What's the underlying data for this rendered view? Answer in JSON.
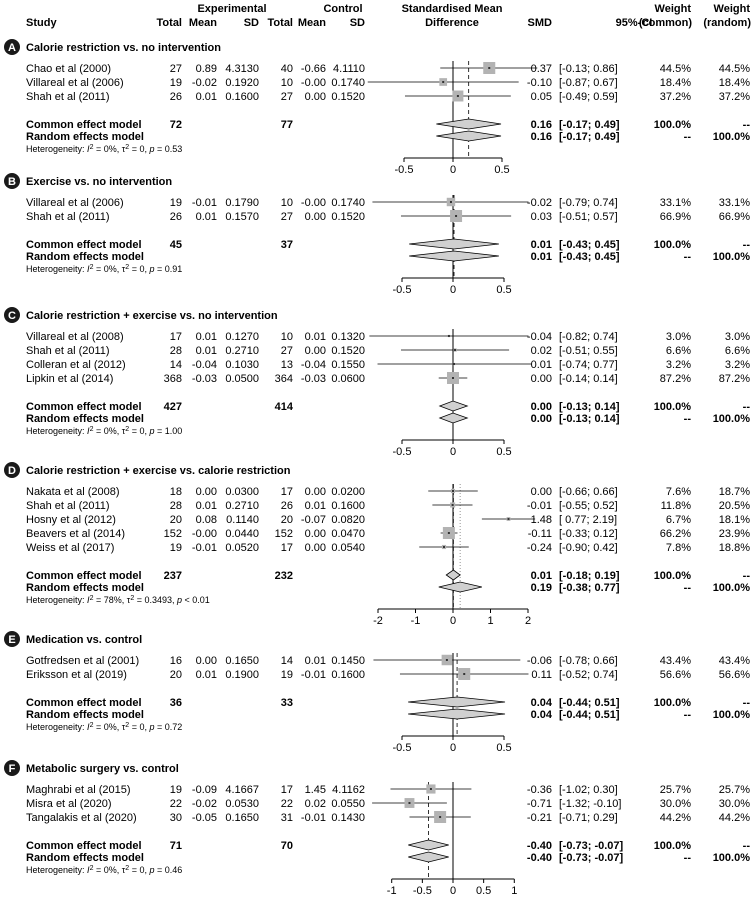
{
  "header": {
    "study": "Study",
    "experimental": "Experimental",
    "control": "Control",
    "total": "Total",
    "mean": "Mean",
    "sd": "SD",
    "smd_title_1": "Standardised Mean",
    "smd_title_2": "Difference",
    "smd": "SMD",
    "ci": "95%-CI",
    "weight": "Weight",
    "common": "(common)",
    "random": "(random)"
  },
  "colors": {
    "box": "#b3b3b3",
    "diamond": "#d0d0d0",
    "line": "#000000"
  },
  "chart_data": [
    {
      "type": "forest",
      "panel": "A",
      "title": "Calorie restriction vs. no intervention",
      "studies": [
        {
          "study": "Chao et al (2000)",
          "e_total": "27",
          "e_mean": "0.89",
          "e_sd": "4.3130",
          "c_total": "40",
          "c_mean": "-0.66",
          "c_sd": "4.1110",
          "smd": 0.37,
          "lo": -0.13,
          "hi": 0.86,
          "smd_text": "0.37",
          "ci_text": "[-0.13; 0.86]",
          "w_common": "44.5%",
          "w_random": "44.5%"
        },
        {
          "study": "Villareal et al (2006)",
          "e_total": "19",
          "e_mean": "-0.02",
          "e_sd": "0.1920",
          "c_total": "10",
          "c_mean": "-0.00",
          "c_sd": "0.1740",
          "smd": -0.1,
          "lo": -0.87,
          "hi": 0.67,
          "smd_text": "-0.10",
          "ci_text": "[-0.87; 0.67]",
          "w_common": "18.4%",
          "w_random": "18.4%"
        },
        {
          "study": "Shah et al (2011)",
          "e_total": "26",
          "e_mean": "0.01",
          "e_sd": "0.1600",
          "c_total": "27",
          "c_mean": "0.00",
          "c_sd": "0.1520",
          "smd": 0.05,
          "lo": -0.49,
          "hi": 0.59,
          "smd_text": "0.05",
          "ci_text": "[-0.49; 0.59]",
          "w_common": "37.2%",
          "w_random": "37.2%"
        }
      ],
      "common": {
        "label": "Common effect model",
        "e_total": "72",
        "c_total": "77",
        "est": 0.16,
        "lo": -0.17,
        "hi": 0.49,
        "smd_text": "0.16",
        "ci_text": "[-0.17; 0.49]",
        "w_common": "100.0%",
        "w_random": "--"
      },
      "random": {
        "label": "Random effects model",
        "est": 0.16,
        "lo": -0.17,
        "hi": 0.49,
        "smd_text": "0.16",
        "ci_text": "[-0.17; 0.49]",
        "w_common": "--",
        "w_random": "100.0%"
      },
      "heterogeneity": {
        "prefix": "Heterogeneity: ",
        "i2": "I",
        "i2_sup": "2",
        "i2_val": " = 0%, ",
        "tau": "τ",
        "tau_sup": "2",
        "tau_val": " = 0, ",
        "p": "p",
        "p_val": " = 0.53"
      },
      "axis": {
        "min": -0.5,
        "max": 0.5,
        "ticks": [
          {
            "v": -0.5,
            "label": "-0.5"
          },
          {
            "v": 0,
            "label": "0"
          },
          {
            "v": 0.5,
            "label": "0.5"
          }
        ]
      }
    },
    {
      "type": "forest",
      "panel": "B",
      "title": "Exercise vs. no intervention",
      "studies": [
        {
          "study": "Villareal et al (2006)",
          "e_total": "19",
          "e_mean": "-0.01",
          "e_sd": "0.1790",
          "c_total": "10",
          "c_mean": "-0.00",
          "c_sd": "0.1740",
          "smd": -0.02,
          "lo": -0.79,
          "hi": 0.74,
          "smd_text": "-0.02",
          "ci_text": "[-0.79; 0.74]",
          "w_common": "33.1%",
          "w_random": "33.1%"
        },
        {
          "study": "Shah et al (2011)",
          "e_total": "26",
          "e_mean": "0.01",
          "e_sd": "0.1570",
          "c_total": "27",
          "c_mean": "0.00",
          "c_sd": "0.1520",
          "smd": 0.03,
          "lo": -0.51,
          "hi": 0.57,
          "smd_text": "0.03",
          "ci_text": "[-0.51; 0.57]",
          "w_common": "66.9%",
          "w_random": "66.9%"
        }
      ],
      "common": {
        "label": "Common effect model",
        "e_total": "45",
        "c_total": "37",
        "est": 0.01,
        "lo": -0.43,
        "hi": 0.45,
        "smd_text": "0.01",
        "ci_text": "[-0.43; 0.45]",
        "w_common": "100.0%",
        "w_random": "--"
      },
      "random": {
        "label": "Random effects model",
        "est": 0.01,
        "lo": -0.43,
        "hi": 0.45,
        "smd_text": "0.01",
        "ci_text": "[-0.43; 0.45]",
        "w_common": "--",
        "w_random": "100.0%"
      },
      "heterogeneity": {
        "prefix": "Heterogeneity: ",
        "i2": "I",
        "i2_sup": "2",
        "i2_val": " = 0%, ",
        "tau": "τ",
        "tau_sup": "2",
        "tau_val": " = 0, ",
        "p": "p",
        "p_val": " = 0.91"
      },
      "axis": {
        "min": -0.5,
        "max": 0.5,
        "ticks": [
          {
            "v": -0.5,
            "label": "-0.5"
          },
          {
            "v": 0,
            "label": "0"
          },
          {
            "v": 0.5,
            "label": "0.5"
          }
        ]
      }
    },
    {
      "type": "forest",
      "panel": "C",
      "title": "Calorie restriction + exercise vs. no intervention",
      "studies": [
        {
          "study": "Villareal et al (2008)",
          "e_total": "17",
          "e_mean": "0.01",
          "e_sd": "0.1270",
          "c_total": "10",
          "c_mean": "0.01",
          "c_sd": "0.1320",
          "smd": -0.04,
          "lo": -0.82,
          "hi": 0.74,
          "smd_text": "-0.04",
          "ci_text": "[-0.82; 0.74]",
          "w_common": "3.0%",
          "w_random": "3.0%"
        },
        {
          "study": "Shah et al (2011)",
          "e_total": "28",
          "e_mean": "0.01",
          "e_sd": "0.2710",
          "c_total": "27",
          "c_mean": "0.00",
          "c_sd": "0.1520",
          "smd": 0.02,
          "lo": -0.51,
          "hi": 0.55,
          "smd_text": "0.02",
          "ci_text": "[-0.51; 0.55]",
          "w_common": "6.6%",
          "w_random": "6.6%"
        },
        {
          "study": "Colleran et al (2012)",
          "e_total": "14",
          "e_mean": "-0.04",
          "e_sd": "0.1030",
          "c_total": "13",
          "c_mean": "-0.04",
          "c_sd": "0.1550",
          "smd": 0.01,
          "lo": -0.74,
          "hi": 0.77,
          "smd_text": "0.01",
          "ci_text": "[-0.74; 0.77]",
          "w_common": "3.2%",
          "w_random": "3.2%"
        },
        {
          "study": "Lipkin et al (2014)",
          "e_total": "368",
          "e_mean": "-0.03",
          "e_sd": "0.0500",
          "c_total": "364",
          "c_mean": "-0.03",
          "c_sd": "0.0600",
          "smd": 0.0,
          "lo": -0.14,
          "hi": 0.14,
          "smd_text": "0.00",
          "ci_text": "[-0.14; 0.14]",
          "w_common": "87.2%",
          "w_random": "87.2%"
        }
      ],
      "common": {
        "label": "Common effect model",
        "e_total": "427",
        "c_total": "414",
        "est": 0.0,
        "lo": -0.13,
        "hi": 0.14,
        "smd_text": "0.00",
        "ci_text": "[-0.13; 0.14]",
        "w_common": "100.0%",
        "w_random": "--"
      },
      "random": {
        "label": "Random effects model",
        "est": 0.0,
        "lo": -0.13,
        "hi": 0.14,
        "smd_text": "0.00",
        "ci_text": "[-0.13; 0.14]",
        "w_common": "--",
        "w_random": "100.0%"
      },
      "heterogeneity": {
        "prefix": "Heterogeneity: ",
        "i2": "I",
        "i2_sup": "2",
        "i2_val": " = 0%, ",
        "tau": "τ",
        "tau_sup": "2",
        "tau_val": " = 0, ",
        "p": "p",
        "p_val": " = 1.00"
      },
      "axis": {
        "min": -0.5,
        "max": 0.5,
        "ticks": [
          {
            "v": -0.5,
            "label": "-0.5"
          },
          {
            "v": 0,
            "label": "0"
          },
          {
            "v": 0.5,
            "label": "0.5"
          }
        ]
      }
    },
    {
      "type": "forest",
      "panel": "D",
      "title": "Calorie restriction + exercise vs. calorie restriction",
      "studies": [
        {
          "study": "Nakata et al (2008)",
          "e_total": "18",
          "e_mean": "0.00",
          "e_sd": "0.0300",
          "c_total": "17",
          "c_mean": "0.00",
          "c_sd": "0.0200",
          "smd": 0.0,
          "lo": -0.66,
          "hi": 0.66,
          "smd_text": "0.00",
          "ci_text": "[-0.66; 0.66]",
          "w_common": "7.6%",
          "w_random": "18.7%"
        },
        {
          "study": "Shah et al (2011)",
          "e_total": "28",
          "e_mean": "0.01",
          "e_sd": "0.2710",
          "c_total": "26",
          "c_mean": "0.01",
          "c_sd": "0.1600",
          "smd": -0.01,
          "lo": -0.55,
          "hi": 0.52,
          "smd_text": "-0.01",
          "ci_text": "[-0.55; 0.52]",
          "w_common": "11.8%",
          "w_random": "20.5%"
        },
        {
          "study": "Hosny et al (2012)",
          "e_total": "20",
          "e_mean": "0.08",
          "e_sd": "0.1140",
          "c_total": "20",
          "c_mean": "-0.07",
          "c_sd": "0.0820",
          "smd": 1.48,
          "lo": 0.77,
          "hi": 2.19,
          "smd_text": "1.48",
          "ci_text": "[ 0.77; 2.19]",
          "w_common": "6.7%",
          "w_random": "18.1%"
        },
        {
          "study": "Beavers et al (2014)",
          "e_total": "152",
          "e_mean": "-0.00",
          "e_sd": "0.0440",
          "c_total": "152",
          "c_mean": "0.00",
          "c_sd": "0.0470",
          "smd": -0.11,
          "lo": -0.33,
          "hi": 0.12,
          "smd_text": "-0.11",
          "ci_text": "[-0.33; 0.12]",
          "w_common": "66.2%",
          "w_random": "23.9%"
        },
        {
          "study": "Weiss et al (2017)",
          "e_total": "19",
          "e_mean": "-0.01",
          "e_sd": "0.0520",
          "c_total": "17",
          "c_mean": "0.00",
          "c_sd": "0.0540",
          "smd": -0.24,
          "lo": -0.9,
          "hi": 0.42,
          "smd_text": "-0.24",
          "ci_text": "[-0.90; 0.42]",
          "w_common": "7.8%",
          "w_random": "18.8%"
        }
      ],
      "common": {
        "label": "Common effect model",
        "e_total": "237",
        "c_total": "232",
        "est": 0.01,
        "lo": -0.18,
        "hi": 0.19,
        "smd_text": "0.01",
        "ci_text": "[-0.18; 0.19]",
        "w_common": "100.0%",
        "w_random": "--"
      },
      "random": {
        "label": "Random effects model",
        "est": 0.19,
        "lo": -0.38,
        "hi": 0.77,
        "smd_text": "0.19",
        "ci_text": "[-0.38; 0.77]",
        "w_common": "--",
        "w_random": "100.0%"
      },
      "heterogeneity": {
        "prefix": "Heterogeneity: ",
        "i2": "I",
        "i2_sup": "2",
        "i2_val": " = 78%, ",
        "tau": "τ",
        "tau_sup": "2",
        "tau_val": " = 0.3493, ",
        "p": "p",
        "p_val": " < 0.01"
      },
      "axis": {
        "min": -2,
        "max": 2,
        "ticks": [
          {
            "v": -2,
            "label": "-2"
          },
          {
            "v": -1,
            "label": "-1"
          },
          {
            "v": 0,
            "label": "0"
          },
          {
            "v": 1,
            "label": "1"
          },
          {
            "v": 2,
            "label": "2"
          }
        ]
      }
    },
    {
      "type": "forest",
      "panel": "E",
      "title": "Medication vs. control",
      "studies": [
        {
          "study": "Gotfredsen et al (2001)",
          "e_total": "16",
          "e_mean": "0.00",
          "e_sd": "0.1650",
          "c_total": "14",
          "c_mean": "0.01",
          "c_sd": "0.1450",
          "smd": -0.06,
          "lo": -0.78,
          "hi": 0.66,
          "smd_text": "-0.06",
          "ci_text": "[-0.78; 0.66]",
          "w_common": "43.4%",
          "w_random": "43.4%"
        },
        {
          "study": "Eriksson et al (2019)",
          "e_total": "20",
          "e_mean": "0.01",
          "e_sd": "0.1900",
          "c_total": "19",
          "c_mean": "-0.01",
          "c_sd": "0.1600",
          "smd": 0.11,
          "lo": -0.52,
          "hi": 0.74,
          "smd_text": "0.11",
          "ci_text": "[-0.52; 0.74]",
          "w_common": "56.6%",
          "w_random": "56.6%"
        }
      ],
      "common": {
        "label": "Common effect model",
        "e_total": "36",
        "c_total": "33",
        "est": 0.04,
        "lo": -0.44,
        "hi": 0.51,
        "smd_text": "0.04",
        "ci_text": "[-0.44; 0.51]",
        "w_common": "100.0%",
        "w_random": "--"
      },
      "random": {
        "label": "Random effects model",
        "est": 0.04,
        "lo": -0.44,
        "hi": 0.51,
        "smd_text": "0.04",
        "ci_text": "[-0.44; 0.51]",
        "w_common": "--",
        "w_random": "100.0%"
      },
      "heterogeneity": {
        "prefix": "Heterogeneity: ",
        "i2": "I",
        "i2_sup": "2",
        "i2_val": " = 0%, ",
        "tau": "τ",
        "tau_sup": "2",
        "tau_val": " = 0, ",
        "p": "p",
        "p_val": " = 0.72"
      },
      "axis": {
        "min": -0.5,
        "max": 0.5,
        "ticks": [
          {
            "v": -0.5,
            "label": "-0.5"
          },
          {
            "v": 0,
            "label": "0"
          },
          {
            "v": 0.5,
            "label": "0.5"
          }
        ]
      }
    },
    {
      "type": "forest",
      "panel": "F",
      "title": "Metabolic surgery vs. control",
      "studies": [
        {
          "study": "Maghrabi et al (2015)",
          "e_total": "19",
          "e_mean": "-0.09",
          "e_sd": "4.1667",
          "c_total": "17",
          "c_mean": "1.45",
          "c_sd": "4.1162",
          "smd": -0.36,
          "lo": -1.02,
          "hi": 0.3,
          "smd_text": "-0.36",
          "ci_text": "[-1.02; 0.30]",
          "w_common": "25.7%",
          "w_random": "25.7%"
        },
        {
          "study": "Misra et al (2020)",
          "e_total": "22",
          "e_mean": "-0.02",
          "e_sd": "0.0530",
          "c_total": "22",
          "c_mean": "0.02",
          "c_sd": "0.0550",
          "smd": -0.71,
          "lo": -1.32,
          "hi": -0.1,
          "smd_text": "-0.71",
          "ci_text": "[-1.32; -0.10]",
          "w_common": "30.0%",
          "w_random": "30.0%"
        },
        {
          "study": "Tangalakis et al (2020)",
          "e_total": "30",
          "e_mean": "-0.05",
          "e_sd": "0.1650",
          "c_total": "31",
          "c_mean": "-0.01",
          "c_sd": "0.1430",
          "smd": -0.21,
          "lo": -0.71,
          "hi": 0.29,
          "smd_text": "-0.21",
          "ci_text": "[-0.71; 0.29]",
          "w_common": "44.2%",
          "w_random": "44.2%"
        }
      ],
      "common": {
        "label": "Common effect model",
        "e_total": "71",
        "c_total": "70",
        "est": -0.4,
        "lo": -0.73,
        "hi": -0.07,
        "smd_text": "-0.40",
        "ci_text": "[-0.73; -0.07]",
        "w_common": "100.0%",
        "w_random": "--"
      },
      "random": {
        "label": "Random effects model",
        "est": -0.4,
        "lo": -0.73,
        "hi": -0.07,
        "smd_text": "-0.40",
        "ci_text": "[-0.73; -0.07]",
        "w_common": "--",
        "w_random": "100.0%"
      },
      "heterogeneity": {
        "prefix": "Heterogeneity: ",
        "i2": "I",
        "i2_sup": "2",
        "i2_val": " = 0%, ",
        "tau": "τ",
        "tau_sup": "2",
        "tau_val": " = 0, ",
        "p": "p",
        "p_val": " = 0.46"
      },
      "axis": {
        "min": -1,
        "max": 1,
        "ticks": [
          {
            "v": -1,
            "label": "-1"
          },
          {
            "v": -0.5,
            "label": "-0.5"
          },
          {
            "v": 0,
            "label": "0"
          },
          {
            "v": 0.5,
            "label": "0.5"
          },
          {
            "v": 1,
            "label": "1"
          }
        ]
      }
    }
  ]
}
